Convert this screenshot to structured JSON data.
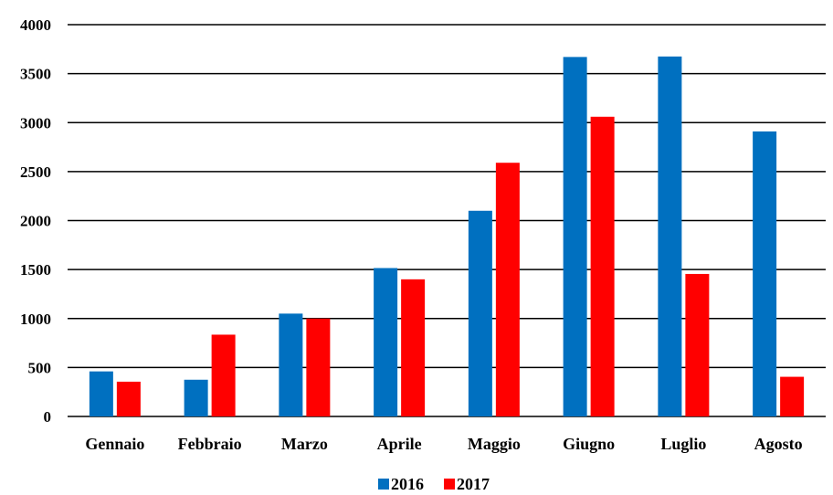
{
  "chart_data": {
    "type": "bar",
    "title": "",
    "xlabel": "",
    "ylabel": "",
    "categories": [
      "Gennaio",
      "Febbraio",
      "Marzo",
      "Aprile",
      "Maggio",
      "Giugno",
      "Luglio",
      "Agosto"
    ],
    "series": [
      {
        "name": "2016",
        "color": "#0070C0",
        "values": [
          460,
          375,
          1050,
          1515,
          2100,
          3670,
          3675,
          2910
        ]
      },
      {
        "name": "2017",
        "color": "#FF0000",
        "values": [
          355,
          835,
          1000,
          1400,
          2590,
          3060,
          1455,
          405
        ]
      }
    ],
    "ylim": [
      0,
      4000
    ],
    "yticks": [
      0,
      500,
      1000,
      1500,
      2000,
      2500,
      3000,
      3500,
      4000
    ],
    "grid": true,
    "legend_position": "bottom"
  }
}
